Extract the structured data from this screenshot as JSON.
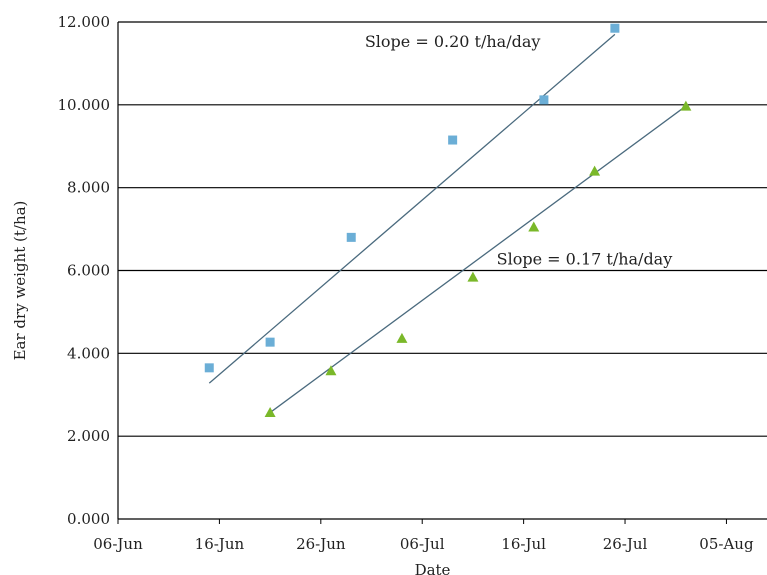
{
  "chart_data": {
    "type": "scatter",
    "title": "",
    "xlabel": "Date",
    "ylabel": "Ear dry weight (t/ha)",
    "x_ticks": [
      "06-Jun",
      "16-Jun",
      "26-Jun",
      "06-Jul",
      "16-Jul",
      "26-Jul",
      "05-Aug"
    ],
    "y_ticks": [
      "0.000",
      "2.000",
      "4.000",
      "6.000",
      "8.000",
      "10.000",
      "12.000"
    ],
    "xlim": [
      "06-Jun",
      "09-Aug"
    ],
    "ylim": [
      0,
      12
    ],
    "grid": "horizontal",
    "legend": "none",
    "series": [
      {
        "marker": "square",
        "color": "#6baed6",
        "points": [
          {
            "x": "15-Jun",
            "y": 3.65
          },
          {
            "x": "21-Jun",
            "y": 4.27
          },
          {
            "x": "29-Jun",
            "y": 6.8
          },
          {
            "x": "09-Jul",
            "y": 9.15
          },
          {
            "x": "18-Jul",
            "y": 10.12
          },
          {
            "x": "25-Jul",
            "y": 11.85
          }
        ],
        "trendline": {
          "start": {
            "x": "15-Jun",
            "y": 3.28
          },
          "end": {
            "x": "25-Jul",
            "y": 11.7
          },
          "color": "#4a6a7e"
        }
      },
      {
        "marker": "triangle",
        "color": "#7ab829",
        "points": [
          {
            "x": "21-Jun",
            "y": 2.57
          },
          {
            "x": "27-Jun",
            "y": 3.58
          },
          {
            "x": "04-Jul",
            "y": 4.36
          },
          {
            "x": "11-Jul",
            "y": 5.84
          },
          {
            "x": "17-Jul",
            "y": 7.05
          },
          {
            "x": "23-Jul",
            "y": 8.4
          },
          {
            "x": "01-Aug",
            "y": 9.97
          }
        ],
        "trendline": {
          "start": {
            "x": "21-Jun",
            "y": 2.57
          },
          "end": {
            "x": "01-Aug",
            "y": 9.97
          },
          "color": "#4a6a7e"
        }
      }
    ],
    "annotations": [
      {
        "text": "Slope = 0.20 t/ha/day",
        "x": "09-Jul",
        "y": 11.4
      },
      {
        "text": "Slope = 0.17 t/ha/day",
        "x": "22-Jul",
        "y": 6.15
      }
    ]
  }
}
